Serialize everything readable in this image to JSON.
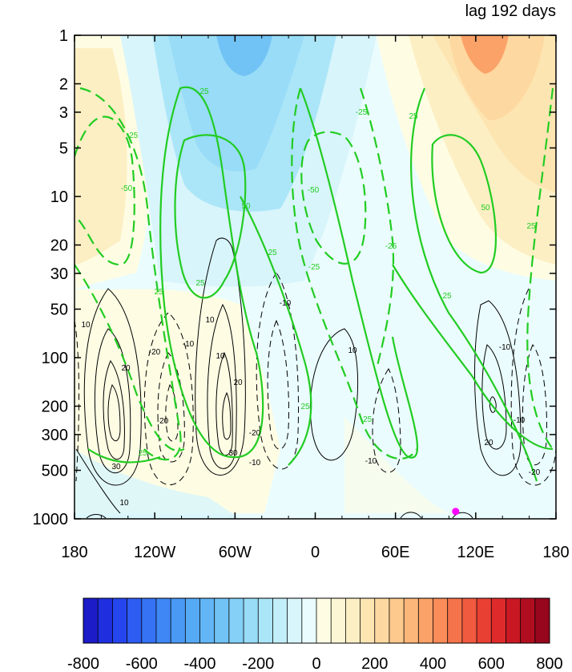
{
  "chart_data": {
    "type": "heatmap",
    "title": "lag 192 days",
    "xlabel": "",
    "ylabel": "",
    "x_ticks": [
      "180",
      "120W",
      "60W",
      "0",
      "60E",
      "120E",
      "180"
    ],
    "y_ticks": [
      "1",
      "2",
      "3",
      "5",
      "10",
      "20",
      "30",
      "50",
      "100",
      "200",
      "300",
      "500",
      "1000"
    ],
    "y_scale": "log",
    "y_inverted": true,
    "xlim": [
      -180,
      180
    ],
    "ylim": [
      1000,
      1
    ],
    "colorbar": {
      "labels": [
        "-800",
        "-600",
        "-400",
        "-200",
        "0",
        "200",
        "400",
        "600",
        "800"
      ],
      "levels": [
        -800,
        -750,
        -700,
        -650,
        -600,
        -550,
        -500,
        -450,
        -400,
        -350,
        -300,
        -250,
        -200,
        -150,
        -100,
        -50,
        0,
        50,
        100,
        150,
        200,
        250,
        300,
        350,
        400,
        450,
        500,
        550,
        600,
        650,
        700,
        750,
        800
      ],
      "colors": [
        "#1c1cc8",
        "#1f2fe0",
        "#2545ee",
        "#2d5cf2",
        "#3572f4",
        "#3f87f5",
        "#4a99f5",
        "#56a9f5",
        "#62b6f5",
        "#72c3f5",
        "#84d0f6",
        "#98dcf7",
        "#abe5f8",
        "#c2eef9",
        "#d8f5fb",
        "#eafcfd",
        "#fefde4",
        "#fdf6d4",
        "#fdefc4",
        "#fde5b2",
        "#fdd8a0",
        "#fdc98c",
        "#fcb67a",
        "#fba268",
        "#f98c58",
        "#f5734a",
        "#f05a3e",
        "#e94034",
        "#df2a2c",
        "#c91824",
        "#b00e20",
        "#96061d"
      ]
    },
    "contour_labels_black": [
      "10",
      "20",
      "30",
      "-10",
      "-20",
      "10",
      "20",
      "30",
      "-10",
      "-20",
      "10",
      "-10",
      "-10",
      "-10",
      "-20",
      "20",
      "-10",
      "-20",
      "10",
      "10"
    ],
    "contour_labels_green": [
      "-25",
      "-50",
      "25",
      "25",
      "50",
      "25",
      "25",
      "-25",
      "-50",
      "-25",
      "25",
      "25",
      "-25",
      "50",
      "25",
      "25",
      "-25",
      "25"
    ],
    "marker": {
      "lon": 105,
      "pressure": 900,
      "color": "#ff00ff"
    }
  }
}
